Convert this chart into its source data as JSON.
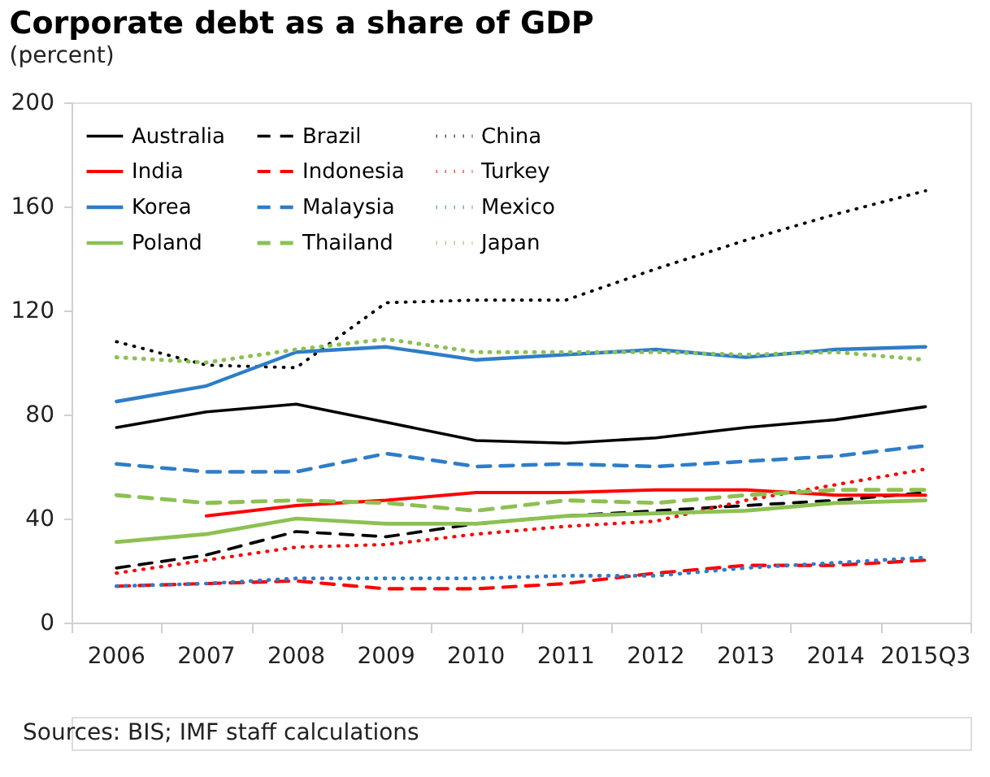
{
  "chart_data": {
    "type": "line",
    "title": "Corporate debt as a share of GDP",
    "subtitle": "(percent)",
    "annotations": [
      "Sources: BIS; IMF staff calculations"
    ],
    "categories": [
      "2006",
      "2007",
      "2008",
      "2009",
      "2010",
      "2011",
      "2012",
      "2013",
      "2014",
      "2015Q3"
    ],
    "ylim": [
      0,
      200
    ],
    "yticks": [
      0,
      40,
      80,
      120,
      160,
      200
    ],
    "grid": false,
    "legend": "top left",
    "marker": "none",
    "series": [
      {
        "name": "Australia",
        "color": "#000000",
        "line_style": "solid",
        "values": [
          75,
          81,
          84,
          77,
          70,
          69,
          71,
          75,
          78,
          83
        ]
      },
      {
        "name": "Brazil",
        "color": "#000000",
        "line_style": "dashed",
        "values": [
          21,
          26,
          35,
          33,
          38,
          41,
          43,
          45,
          47,
          50
        ]
      },
      {
        "name": "China",
        "color": "#000000",
        "line_style": "dotted",
        "values": [
          108,
          99,
          98,
          123,
          124,
          124,
          136,
          147,
          157,
          166
        ]
      },
      {
        "name": "India",
        "color": "#ff0000",
        "line_style": "solid",
        "values": [
          null,
          41,
          45,
          47,
          50,
          50,
          51,
          51,
          49,
          49
        ]
      },
      {
        "name": "Indonesia",
        "color": "#ff0000",
        "line_style": "dashed",
        "values": [
          14,
          15,
          16,
          13,
          13,
          15,
          19,
          22,
          22,
          24
        ]
      },
      {
        "name": "Turkey",
        "color": "#ff0000",
        "line_style": "dotted",
        "values": [
          19,
          24,
          29,
          30,
          34,
          37,
          39,
          47,
          53,
          59
        ]
      },
      {
        "name": "Korea",
        "color": "#2e7dc8",
        "line_style": "solid",
        "values": [
          85,
          91,
          104,
          106,
          101,
          103,
          105,
          102,
          105,
          106
        ]
      },
      {
        "name": "Malaysia",
        "color": "#2e7dc8",
        "line_style": "dashed",
        "values": [
          61,
          58,
          58,
          65,
          60,
          61,
          60,
          62,
          64,
          68
        ]
      },
      {
        "name": "Mexico",
        "color": "#2e7dc8",
        "line_style": "dotted",
        "values": [
          14,
          15,
          17,
          17,
          17,
          18,
          18,
          21,
          23,
          25
        ]
      },
      {
        "name": "Poland",
        "color": "#8cc152",
        "line_style": "solid",
        "values": [
          31,
          34,
          40,
          38,
          38,
          41,
          42,
          43,
          46,
          47
        ]
      },
      {
        "name": "Thailand",
        "color": "#8cc152",
        "line_style": "dashed",
        "values": [
          49,
          46,
          47,
          46,
          43,
          47,
          46,
          49,
          51,
          51
        ]
      },
      {
        "name": "Japan",
        "color": "#8cc152",
        "line_style": "dotted",
        "values": [
          102,
          100,
          105,
          109,
          104,
          104,
          104,
          103,
          104,
          101
        ]
      }
    ]
  }
}
